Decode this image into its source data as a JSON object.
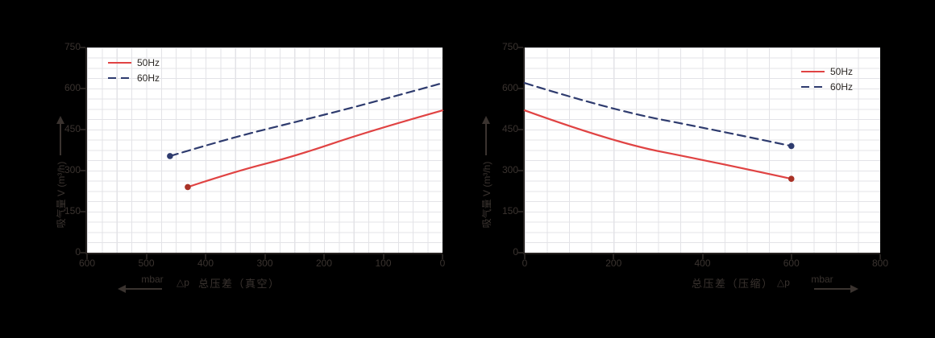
{
  "colors": {
    "series_50hz": "#e04343",
    "series_50hz_marker": "#a93226",
    "series_60hz": "#2e3b6e",
    "series_60hz_marker": "#2e3b6e",
    "axis": "#262220",
    "grid": "#e3e3e7",
    "text": "#3a332f",
    "background": "#000000",
    "plot_background": "#ffffff"
  },
  "chart_data": [
    {
      "type": "line",
      "id": "vacuum",
      "y_axis_title": "吸气量 V (m³/h)",
      "x_axis_label": "总压差（真空）",
      "x_axis_prefix": "△p",
      "x_unit": "mbar",
      "x_unit_arrow": "left",
      "x_ticks": [
        600,
        500,
        400,
        300,
        200,
        100,
        0
      ],
      "y_ticks": [
        750,
        600,
        450,
        300,
        150,
        0
      ],
      "x_range": [
        0,
        600
      ],
      "x_reversed": true,
      "y_range": [
        0,
        750
      ],
      "grid": "on",
      "legend_position": "top-left",
      "series": [
        {
          "name": "50Hz",
          "style": "solid",
          "marker_at": "first",
          "points": [
            [
              430,
              240
            ],
            [
              350,
              297
            ],
            [
              250,
              352
            ],
            [
              120,
              447
            ],
            [
              0,
              520
            ]
          ]
        },
        {
          "name": "60Hz",
          "style": "dashed",
          "marker_at": "first",
          "points": [
            [
              460,
              353
            ],
            [
              360,
              418
            ],
            [
              240,
              482
            ],
            [
              120,
              548
            ],
            [
              0,
              620
            ]
          ]
        }
      ]
    },
    {
      "type": "line",
      "id": "compression",
      "y_axis_title": "吸气量 V (m³/h)",
      "x_axis_label": "总压差（压缩）",
      "x_axis_suffix": "△p",
      "x_unit": "mbar",
      "x_unit_arrow": "right",
      "x_ticks": [
        0,
        200,
        400,
        600,
        800
      ],
      "y_ticks": [
        750,
        600,
        450,
        300,
        150,
        0
      ],
      "x_range": [
        0,
        800
      ],
      "x_reversed": false,
      "y_range": [
        0,
        750
      ],
      "grid": "on",
      "legend_position": "top-right",
      "series": [
        {
          "name": "50Hz",
          "style": "solid",
          "marker_at": "last",
          "points": [
            [
              0,
              520
            ],
            [
              200,
              403
            ],
            [
              415,
              335
            ],
            [
              600,
              270
            ]
          ]
        },
        {
          "name": "60Hz",
          "style": "dashed",
          "marker_at": "last",
          "points": [
            [
              0,
              620
            ],
            [
              200,
              520
            ],
            [
              415,
              453
            ],
            [
              600,
              390
            ]
          ]
        }
      ]
    }
  ]
}
